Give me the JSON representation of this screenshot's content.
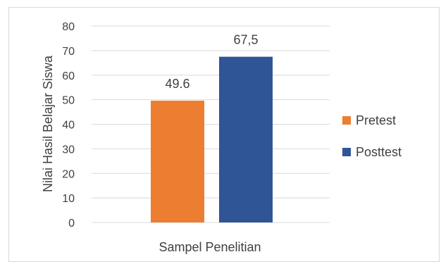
{
  "chart_data": {
    "type": "bar",
    "categories": [
      "Sampel Penelitian"
    ],
    "series": [
      {
        "name": "Pretest",
        "values": [
          49.6
        ],
        "label": "49.6",
        "color": "#ed7d31"
      },
      {
        "name": "Posttest",
        "values": [
          67.5
        ],
        "label": "67,5",
        "color": "#2f5597"
      }
    ],
    "xlabel": "Sampel Penelitian",
    "ylabel": "Nilai Hasil Belajar Siswa",
    "ylim": [
      0,
      80
    ],
    "yticks": [
      "0",
      "10",
      "20",
      "30",
      "40",
      "50",
      "60",
      "70",
      "80"
    ],
    "grid": true,
    "legend_position": "right"
  }
}
